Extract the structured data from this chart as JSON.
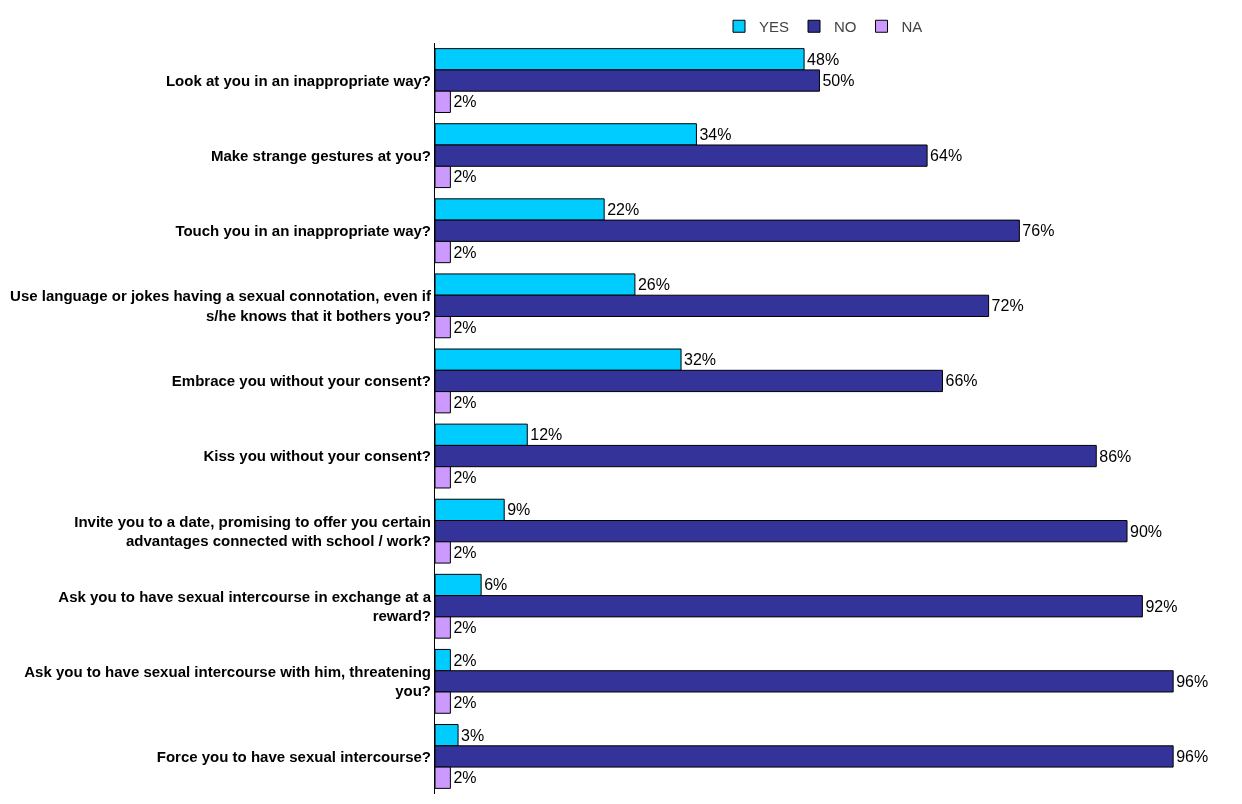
{
  "chart_data": {
    "type": "bar",
    "orientation": "horizontal",
    "legend": "top",
    "grid": false,
    "categories": [
      "Look at you in an inappropriate way?",
      "Make strange gestures at you?",
      "Touch you in an inappropriate way?",
      "Use language or jokes having a sexual connotation, even if s/he knows that it bothers you?",
      "Embrace you without your consent?",
      "Kiss you without your consent?",
      "Invite you to a date, promising to offer you certain advantages connected with school / work?",
      "Ask you to have sexual intercourse in exchange at a reward?",
      "Ask you to have sexual intercourse with him, threatening you?",
      "Force you to have sexual intercourse?"
    ],
    "series": [
      {
        "name": "YES",
        "color": "#00ccff",
        "values": [
          48,
          34,
          22,
          26,
          32,
          12,
          9,
          6,
          2,
          3
        ],
        "value_labels": [
          "48%",
          "34%",
          "22%",
          "26%",
          "32%",
          "12%",
          "9%",
          "6%",
          "2%",
          "3%"
        ]
      },
      {
        "name": "NO",
        "color": "#333399",
        "values": [
          50,
          64,
          76,
          72,
          66,
          86,
          90,
          92,
          96,
          96
        ],
        "value_labels": [
          "50%",
          "64%",
          "76%",
          "72%",
          "66%",
          "86%",
          "90%",
          "92%",
          "96%",
          "96%"
        ]
      },
      {
        "name": "NA",
        "color": "#cc99ff",
        "values": [
          2,
          2,
          2,
          2,
          2,
          2,
          2,
          2,
          2,
          2
        ],
        "value_labels": [
          "2%",
          "2%",
          "2%",
          "2%",
          "2%",
          "2%",
          "2%",
          "2%",
          "2%",
          "2%"
        ]
      }
    ]
  }
}
